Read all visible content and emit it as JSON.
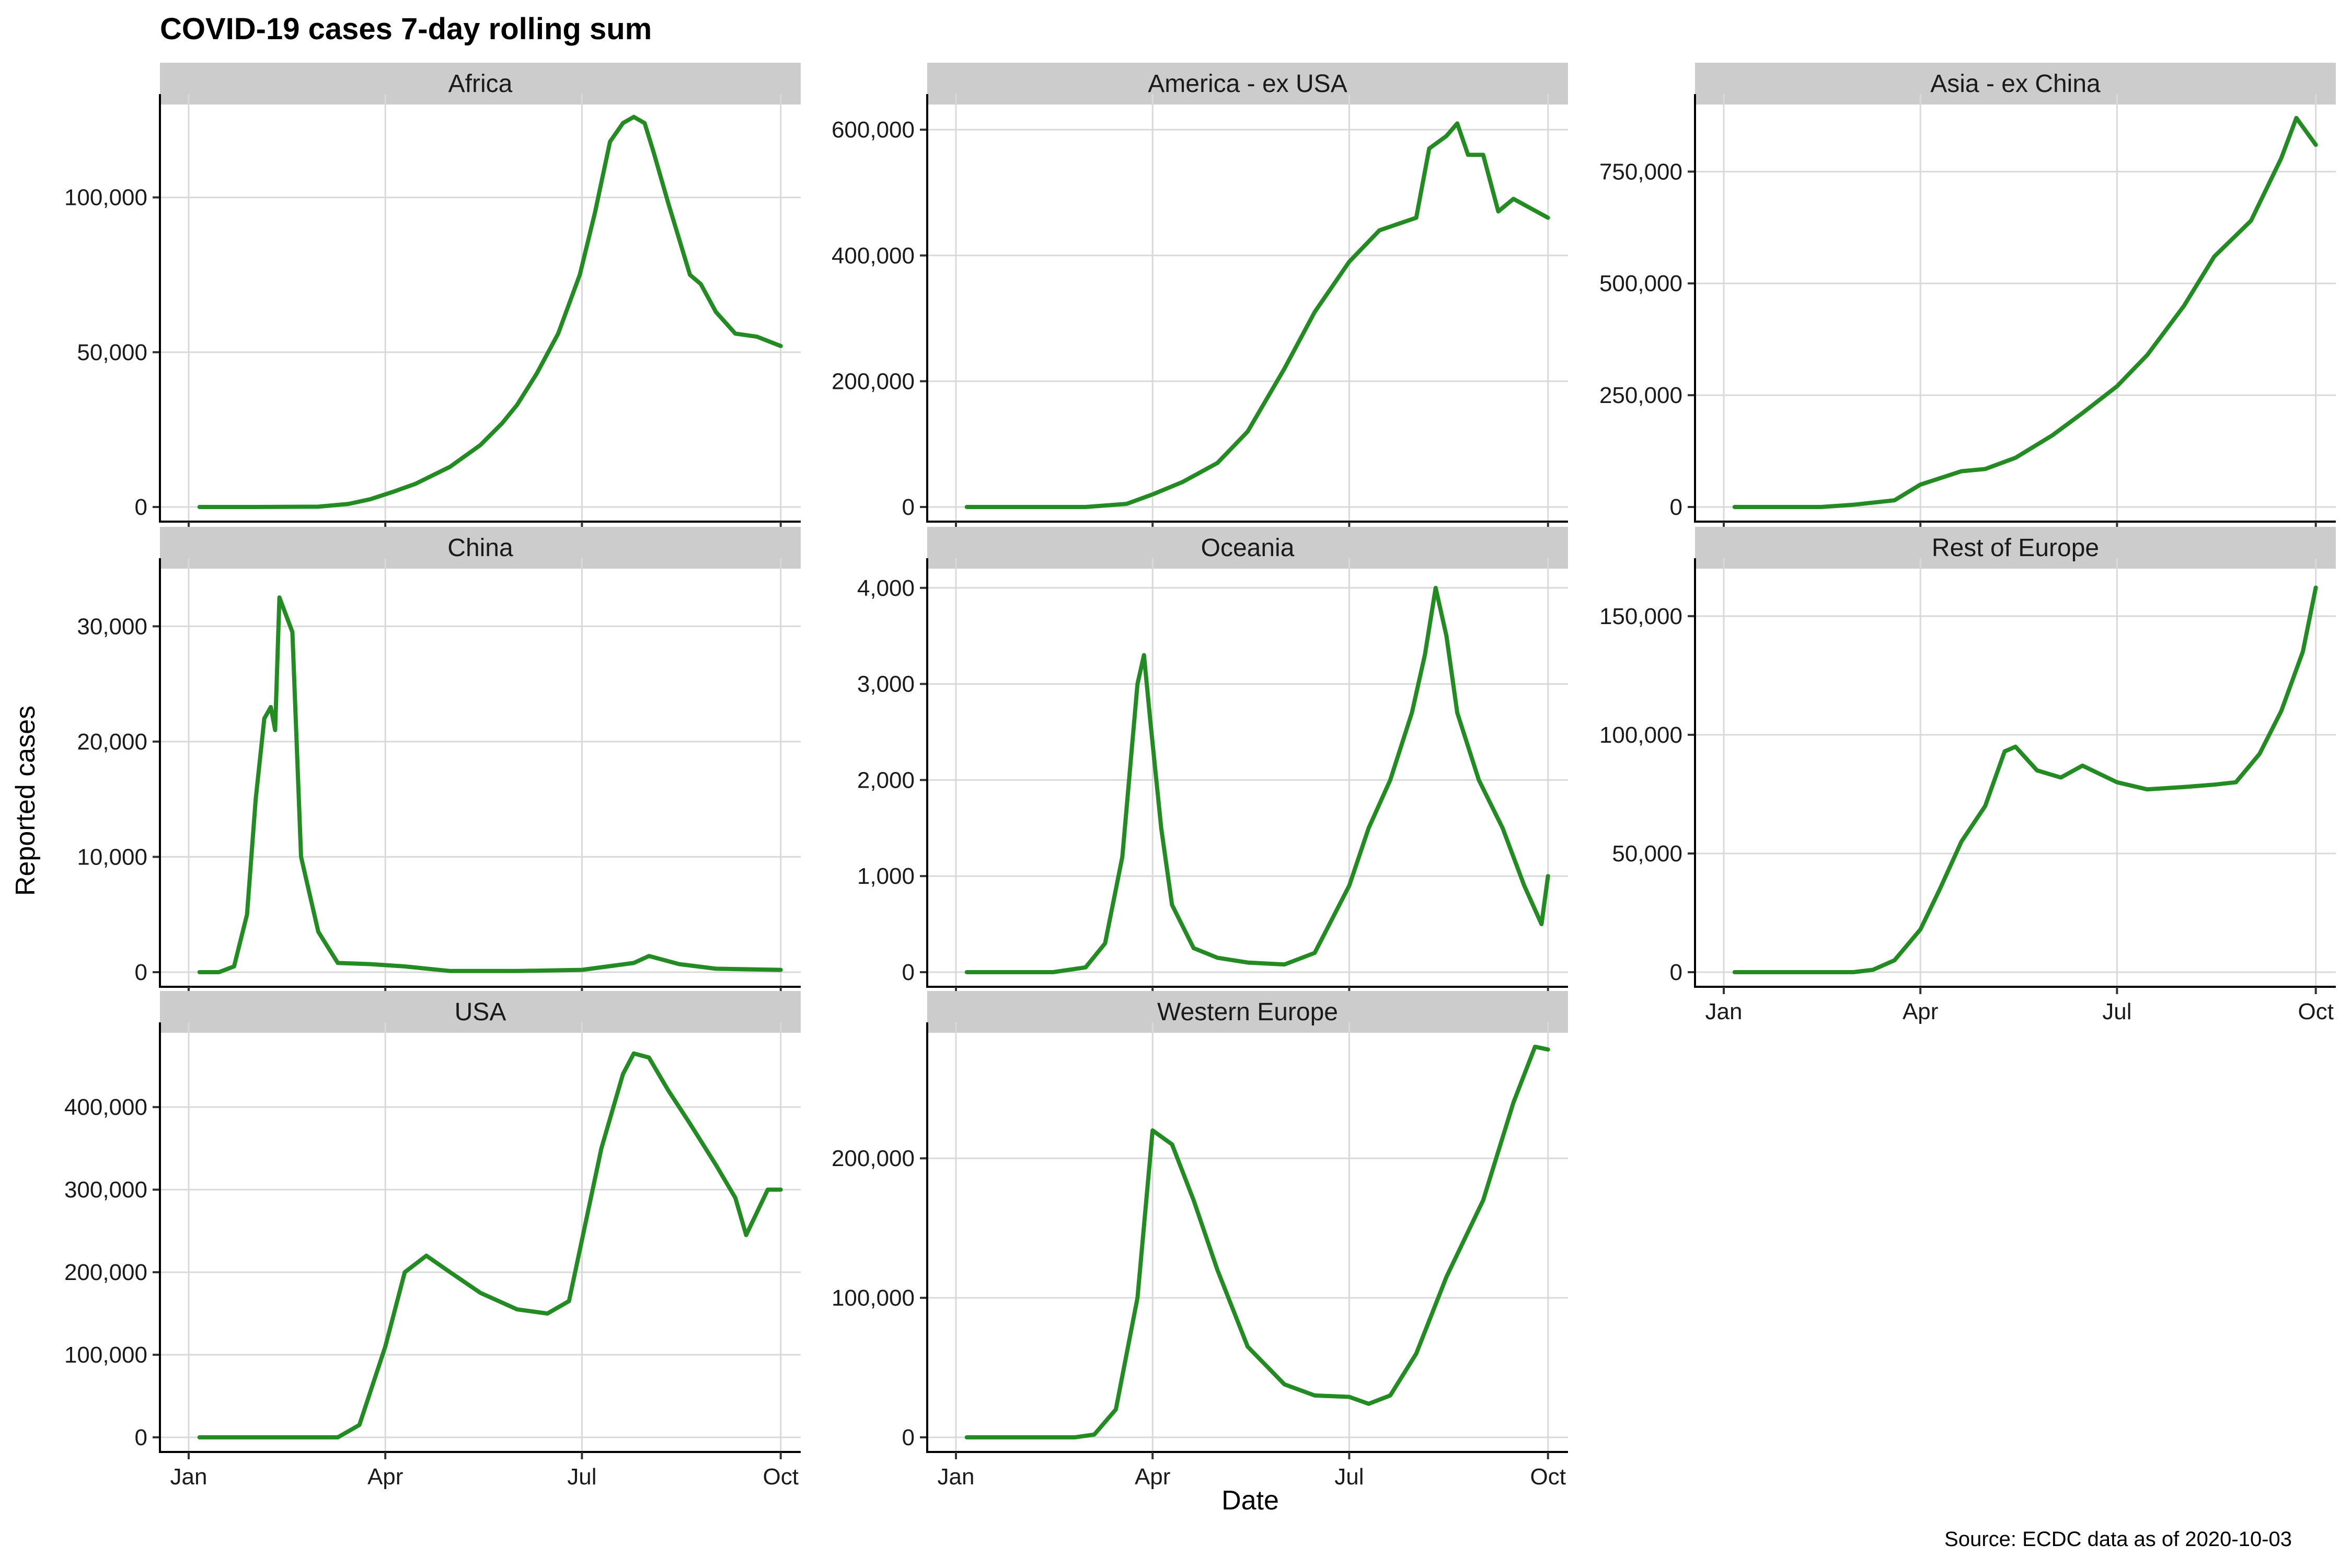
{
  "chart_data": {
    "type": "line",
    "title": "COVID-19 cases 7-day rolling sum",
    "xlabel": "Date",
    "ylabel": "Reported cases",
    "caption": "Source: ECDC data as of 2020-10-03",
    "x_ticks": [
      "Jan",
      "Apr",
      "Jul",
      "Oct"
    ],
    "x_range": [
      "2020-01-01",
      "2020-10-03"
    ],
    "grid": true,
    "line_color": "#228B22",
    "panels": [
      {
        "name": "Africa",
        "ylim": [
          0,
          130000
        ],
        "y_ticks": [
          0,
          50000,
          100000
        ],
        "y_tick_labels": [
          "0",
          "50,000",
          "100,000"
        ],
        "x": [
          "2020-01-06",
          "2020-02-01",
          "2020-03-01",
          "2020-03-15",
          "2020-03-25",
          "2020-04-05",
          "2020-04-15",
          "2020-05-01",
          "2020-05-15",
          "2020-05-25",
          "2020-06-01",
          "2020-06-10",
          "2020-06-20",
          "2020-06-30",
          "2020-07-07",
          "2020-07-14",
          "2020-07-20",
          "2020-07-25",
          "2020-07-30",
          "2020-08-03",
          "2020-08-10",
          "2020-08-20",
          "2020-08-25",
          "2020-09-01",
          "2020-09-10",
          "2020-09-20",
          "2020-10-01"
        ],
        "y": [
          0,
          0,
          100,
          1000,
          2500,
          5000,
          7500,
          13000,
          20000,
          27000,
          33000,
          43000,
          56000,
          75000,
          95000,
          118000,
          124000,
          126000,
          124000,
          115000,
          98000,
          75000,
          72000,
          63000,
          56000,
          55000,
          52000
        ]
      },
      {
        "name": "America - ex USA",
        "ylim": [
          0,
          640000
        ],
        "y_ticks": [
          0,
          200000,
          400000,
          600000
        ],
        "y_tick_labels": [
          "0",
          "200,000",
          "400,000",
          "600,000"
        ],
        "x": [
          "2020-01-06",
          "2020-03-01",
          "2020-03-20",
          "2020-04-01",
          "2020-04-15",
          "2020-05-01",
          "2020-05-15",
          "2020-06-01",
          "2020-06-15",
          "2020-07-01",
          "2020-07-15",
          "2020-08-01",
          "2020-08-07",
          "2020-08-15",
          "2020-08-20",
          "2020-08-25",
          "2020-09-01",
          "2020-09-08",
          "2020-09-15",
          "2020-10-01"
        ],
        "y": [
          0,
          0,
          5000,
          20000,
          40000,
          70000,
          120000,
          220000,
          310000,
          390000,
          440000,
          460000,
          570000,
          590000,
          610000,
          560000,
          560000,
          470000,
          490000,
          460000
        ]
      },
      {
        "name": "Asia - ex China",
        "ylim": [
          0,
          900000
        ],
        "y_ticks": [
          0,
          250000,
          500000,
          750000
        ],
        "y_tick_labels": [
          "0",
          "250,000",
          "500,000",
          "750,000"
        ],
        "x": [
          "2020-01-06",
          "2020-02-15",
          "2020-03-01",
          "2020-03-20",
          "2020-04-01",
          "2020-04-20",
          "2020-05-01",
          "2020-05-15",
          "2020-06-01",
          "2020-06-15",
          "2020-07-01",
          "2020-07-15",
          "2020-08-01",
          "2020-08-15",
          "2020-09-01",
          "2020-09-15",
          "2020-09-22",
          "2020-10-01"
        ],
        "y": [
          0,
          0,
          5000,
          15000,
          50000,
          80000,
          85000,
          110000,
          160000,
          210000,
          270000,
          340000,
          450000,
          560000,
          640000,
          780000,
          870000,
          810000
        ]
      },
      {
        "name": "China",
        "ylim": [
          0,
          35000
        ],
        "y_ticks": [
          0,
          10000,
          20000,
          30000
        ],
        "y_tick_labels": [
          "0",
          "10,000",
          "20,000",
          "30,000"
        ],
        "x": [
          "2020-01-06",
          "2020-01-15",
          "2020-01-22",
          "2020-01-28",
          "2020-02-01",
          "2020-02-05",
          "2020-02-08",
          "2020-02-10",
          "2020-02-12",
          "2020-02-15",
          "2020-02-18",
          "2020-02-22",
          "2020-03-01",
          "2020-03-10",
          "2020-03-25",
          "2020-04-10",
          "2020-05-01",
          "2020-06-01",
          "2020-07-01",
          "2020-07-25",
          "2020-08-01",
          "2020-08-15",
          "2020-09-01",
          "2020-10-01"
        ],
        "y": [
          0,
          0,
          500,
          5000,
          15000,
          22000,
          23000,
          21000,
          32500,
          31000,
          29500,
          10000,
          3500,
          800,
          700,
          500,
          100,
          100,
          200,
          800,
          1400,
          700,
          300,
          200
        ]
      },
      {
        "name": "Oceania",
        "ylim": [
          0,
          4200
        ],
        "y_ticks": [
          0,
          1000,
          2000,
          3000,
          4000
        ],
        "y_tick_labels": [
          "0",
          "1,000",
          "2,000",
          "3,000",
          "4,000"
        ],
        "x": [
          "2020-01-06",
          "2020-02-15",
          "2020-03-01",
          "2020-03-10",
          "2020-03-18",
          "2020-03-25",
          "2020-03-28",
          "2020-03-31",
          "2020-04-05",
          "2020-04-10",
          "2020-04-20",
          "2020-05-01",
          "2020-05-15",
          "2020-06-01",
          "2020-06-15",
          "2020-07-01",
          "2020-07-10",
          "2020-07-20",
          "2020-07-30",
          "2020-08-05",
          "2020-08-10",
          "2020-08-15",
          "2020-08-20",
          "2020-08-30",
          "2020-09-10",
          "2020-09-20",
          "2020-09-28",
          "2020-10-01"
        ],
        "y": [
          0,
          0,
          50,
          300,
          1200,
          3000,
          3300,
          2600,
          1500,
          700,
          250,
          150,
          100,
          80,
          200,
          900,
          1500,
          2000,
          2700,
          3300,
          4000,
          3500,
          2700,
          2000,
          1500,
          900,
          500,
          1000
        ]
      },
      {
        "name": "Rest of Europe",
        "ylim": [
          0,
          170000
        ],
        "y_ticks": [
          0,
          50000,
          100000,
          150000
        ],
        "y_tick_labels": [
          "0",
          "50,000",
          "100,000",
          "150,000"
        ],
        "x": [
          "2020-01-06",
          "2020-03-01",
          "2020-03-10",
          "2020-03-20",
          "2020-04-01",
          "2020-04-10",
          "2020-04-20",
          "2020-05-01",
          "2020-05-10",
          "2020-05-15",
          "2020-05-25",
          "2020-06-05",
          "2020-06-15",
          "2020-07-01",
          "2020-07-15",
          "2020-08-01",
          "2020-08-15",
          "2020-08-25",
          "2020-09-05",
          "2020-09-15",
          "2020-09-25",
          "2020-10-01"
        ],
        "y": [
          0,
          0,
          1000,
          5000,
          18000,
          35000,
          55000,
          70000,
          93000,
          95000,
          85000,
          82000,
          87000,
          80000,
          77000,
          78000,
          79000,
          80000,
          92000,
          110000,
          135000,
          162000
        ]
      },
      {
        "name": "USA",
        "ylim": [
          0,
          490000
        ],
        "y_ticks": [
          0,
          100000,
          200000,
          300000,
          400000
        ],
        "y_tick_labels": [
          "0",
          "100,000",
          "200,000",
          "300,000",
          "400,000"
        ],
        "x": [
          "2020-01-06",
          "2020-03-10",
          "2020-03-20",
          "2020-04-01",
          "2020-04-10",
          "2020-04-20",
          "2020-05-01",
          "2020-05-15",
          "2020-06-01",
          "2020-06-15",
          "2020-06-25",
          "2020-07-10",
          "2020-07-20",
          "2020-07-25",
          "2020-08-01",
          "2020-08-10",
          "2020-08-20",
          "2020-09-01",
          "2020-09-10",
          "2020-09-15",
          "2020-09-25",
          "2020-10-01"
        ],
        "y": [
          0,
          0,
          15000,
          110000,
          200000,
          220000,
          200000,
          175000,
          155000,
          150000,
          165000,
          350000,
          440000,
          465000,
          460000,
          420000,
          380000,
          330000,
          290000,
          245000,
          300000,
          300000
        ]
      },
      {
        "name": "Western Europe",
        "ylim": [
          0,
          290000
        ],
        "y_ticks": [
          0,
          100000,
          200000
        ],
        "y_tick_labels": [
          "0",
          "100,000",
          "200,000"
        ],
        "x": [
          "2020-01-06",
          "2020-02-25",
          "2020-03-05",
          "2020-03-15",
          "2020-03-25",
          "2020-04-01",
          "2020-04-10",
          "2020-04-20",
          "2020-05-01",
          "2020-05-15",
          "2020-06-01",
          "2020-06-15",
          "2020-07-01",
          "2020-07-10",
          "2020-07-20",
          "2020-08-01",
          "2020-08-15",
          "2020-09-01",
          "2020-09-15",
          "2020-09-25",
          "2020-10-01"
        ],
        "y": [
          0,
          0,
          2000,
          20000,
          100000,
          220000,
          210000,
          170000,
          120000,
          65000,
          38000,
          30000,
          29000,
          24000,
          30000,
          60000,
          115000,
          170000,
          240000,
          280000,
          278000
        ]
      }
    ]
  }
}
